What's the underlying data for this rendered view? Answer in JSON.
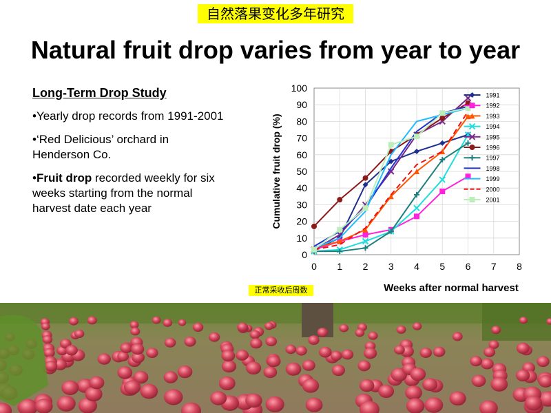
{
  "chinese_title": "自然落果变化多年研究",
  "title": "Natural fruit drop varies from year to year",
  "left_panel": {
    "heading": "Long-Term Drop Study",
    "bullet1": "•Yearly drop records from 1991-2001",
    "bullet2": "•‘Red Delicious’ orchard in Henderson Co.",
    "bullet3_bold": "Fruit drop",
    "bullet3_prefix": "•",
    "bullet3_rest": " recorded weekly for six weeks starting from the normal harvest date each year"
  },
  "chinese_xlabel": "正常采收后周数",
  "chart_data": {
    "type": "line",
    "xlabel": "Weeks after normal harvest",
    "ylabel": "Cumulative fruit drop (%)",
    "xlim": [
      0,
      8
    ],
    "ylim": [
      0,
      100
    ],
    "xticks": [
      0,
      1,
      2,
      3,
      4,
      5,
      6,
      7,
      8
    ],
    "yticks": [
      0,
      10,
      20,
      30,
      40,
      50,
      60,
      70,
      80,
      90,
      100
    ],
    "legend_position": "top-right",
    "series": [
      {
        "name": "1991",
        "color": "#1f2f8f",
        "marker": "diamond",
        "dash": false,
        "x": [
          0,
          1,
          2,
          3,
          4,
          5,
          6
        ],
        "y": [
          3,
          10,
          42,
          56,
          62,
          67,
          72
        ]
      },
      {
        "name": "1992",
        "color": "#ff22dd",
        "marker": "square",
        "dash": false,
        "x": [
          0,
          1,
          2,
          3,
          4,
          5,
          6
        ],
        "y": [
          3,
          8,
          12,
          15,
          23,
          38,
          47
        ]
      },
      {
        "name": "1993",
        "color": "#ff5500",
        "marker": "triangle",
        "dash": false,
        "x": [
          0,
          1,
          2,
          3,
          4,
          5,
          6
        ],
        "y": [
          4,
          8,
          15,
          35,
          50,
          62,
          83
        ]
      },
      {
        "name": "1994",
        "color": "#22dddd",
        "marker": "x",
        "dash": false,
        "x": [
          0,
          1,
          2,
          3,
          4,
          5,
          6
        ],
        "y": [
          2,
          3,
          8,
          14,
          28,
          45,
          72
        ]
      },
      {
        "name": "1995",
        "color": "#7a2a8a",
        "marker": "x",
        "dash": false,
        "x": [
          0,
          1,
          2,
          3,
          4,
          5,
          6
        ],
        "y": [
          3,
          12,
          30,
          50,
          72,
          80,
          94
        ]
      },
      {
        "name": "1996",
        "color": "#8b1a1a",
        "marker": "circle",
        "dash": false,
        "x": [
          0,
          1,
          2,
          3,
          4,
          5,
          6
        ],
        "y": [
          17,
          33,
          46,
          62,
          72,
          82,
          91
        ]
      },
      {
        "name": "1997",
        "color": "#1f7f7f",
        "marker": "plus",
        "dash": false,
        "x": [
          0,
          1,
          2,
          3,
          4,
          5,
          6
        ],
        "y": [
          2,
          2,
          4,
          14,
          36,
          57,
          67
        ]
      },
      {
        "name": "1998",
        "color": "#2233cc",
        "marker": "none",
        "dash": false,
        "x": [
          0,
          1,
          2,
          3,
          4,
          5,
          6
        ],
        "y": [
          5,
          14,
          28,
          52,
          74,
          85,
          89
        ]
      },
      {
        "name": "1999",
        "color": "#22bbff",
        "marker": "none",
        "dash": false,
        "x": [
          0,
          1,
          2,
          3,
          4,
          5,
          6
        ],
        "y": [
          4,
          10,
          26,
          60,
          80,
          84,
          88
        ]
      },
      {
        "name": "2000",
        "color": "#ee1111",
        "marker": "none",
        "dash": true,
        "x": [
          0,
          1,
          2,
          3,
          4,
          5,
          6
        ],
        "y": [
          3,
          6,
          16,
          36,
          54,
          62,
          86
        ]
      },
      {
        "name": "2001",
        "color": "#bbeebb",
        "marker": "square",
        "dash": false,
        "x": [
          0,
          1,
          2,
          3,
          4,
          5,
          6
        ],
        "y": [
          3,
          15,
          28,
          66,
          71,
          85,
          88
        ]
      }
    ]
  }
}
